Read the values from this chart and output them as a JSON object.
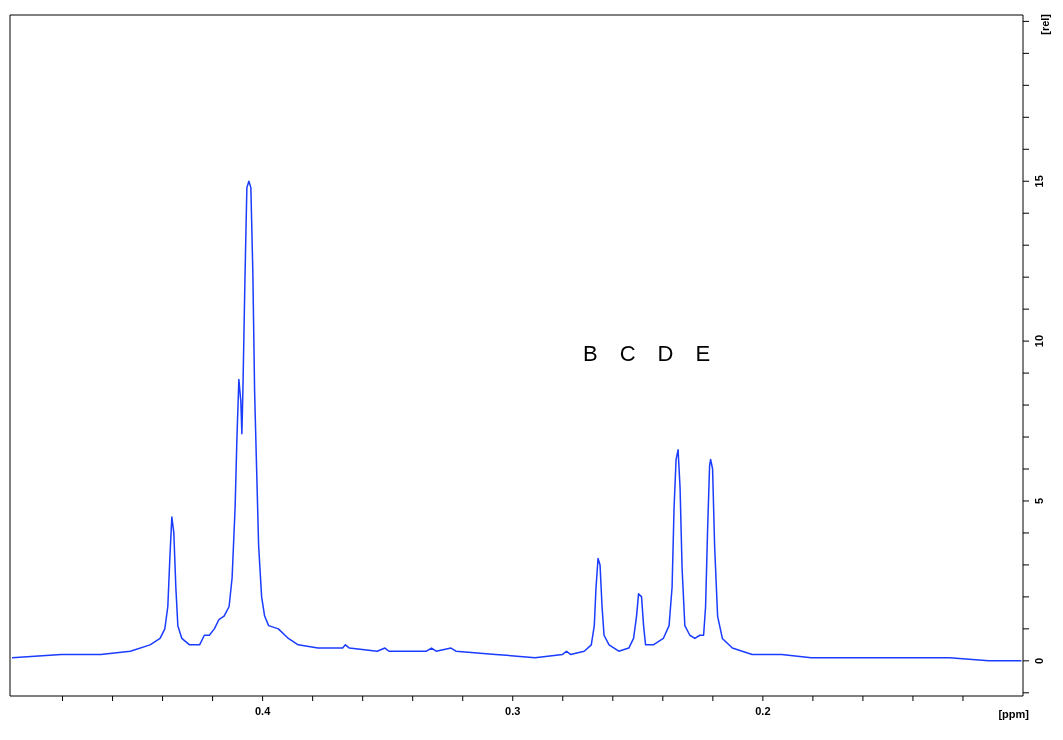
{
  "chart_data": {
    "type": "line",
    "xlabel": "[ppm]",
    "ylabel": "[rel]",
    "xlim": [
      0.501,
      0.096
    ],
    "ylim": [
      -1.1,
      20.2
    ],
    "xticks": [
      {
        "value": 0.48,
        "label": null
      },
      {
        "value": 0.46,
        "label": null
      },
      {
        "value": 0.44,
        "label": null
      },
      {
        "value": 0.42,
        "label": null
      },
      {
        "value": 0.4,
        "label": "0.4"
      },
      {
        "value": 0.38,
        "label": null
      },
      {
        "value": 0.36,
        "label": null
      },
      {
        "value": 0.34,
        "label": null
      },
      {
        "value": 0.32,
        "label": null
      },
      {
        "value": 0.3,
        "label": "0.3"
      },
      {
        "value": 0.28,
        "label": null
      },
      {
        "value": 0.26,
        "label": null
      },
      {
        "value": 0.24,
        "label": null
      },
      {
        "value": 0.22,
        "label": null
      },
      {
        "value": 0.2,
        "label": "0.2"
      },
      {
        "value": 0.18,
        "label": null
      },
      {
        "value": 0.16,
        "label": null
      },
      {
        "value": 0.14,
        "label": null
      },
      {
        "value": 0.12,
        "label": null
      }
    ],
    "yticks": [
      {
        "value": -1,
        "label": null
      },
      0,
      {
        "value": 1,
        "label": null
      },
      {
        "value": 2,
        "label": null
      },
      {
        "value": 3,
        "label": null
      },
      {
        "value": 4,
        "label": null
      },
      5,
      {
        "value": 6,
        "label": null
      },
      {
        "value": 7,
        "label": null
      },
      {
        "value": 8,
        "label": null
      },
      {
        "value": 9,
        "label": null
      },
      10,
      {
        "value": 11,
        "label": null
      },
      {
        "value": 12,
        "label": null
      },
      {
        "value": 13,
        "label": null
      },
      {
        "value": 14,
        "label": null
      },
      15,
      {
        "value": 16,
        "label": null
      },
      {
        "value": 17,
        "label": null
      },
      {
        "value": 18,
        "label": null
      },
      {
        "value": 19,
        "label": null
      },
      {
        "value": 20,
        "label": null
      }
    ],
    "grid": false,
    "annotations": [
      "B",
      "C",
      "D",
      "E"
    ],
    "series": [
      {
        "color": "#1a3cff",
        "x": [
          0.5002,
          0.4805,
          0.4726,
          0.4647,
          0.4529,
          0.445,
          0.441,
          0.4391,
          0.4379,
          0.4371,
          0.4363,
          0.4355,
          0.4347,
          0.4339,
          0.4323,
          0.4292,
          0.4252,
          0.4233,
          0.4213,
          0.4193,
          0.4174,
          0.4154,
          0.4134,
          0.4122,
          0.411,
          0.4103,
          0.4095,
          0.4087,
          0.4083,
          0.4079,
          0.4071,
          0.4063,
          0.4055,
          0.4047,
          0.4039,
          0.4032,
          0.4024,
          0.4016,
          0.4004,
          0.3992,
          0.3976,
          0.3937,
          0.3897,
          0.3858,
          0.3779,
          0.368,
          0.3669,
          0.3653,
          0.3542,
          0.3511,
          0.3495,
          0.3345,
          0.3325,
          0.3306,
          0.3247,
          0.3227,
          0.3069,
          0.2911,
          0.2801,
          0.2785,
          0.2769,
          0.2714,
          0.2686,
          0.2674,
          0.2667,
          0.2659,
          0.2651,
          0.2643,
          0.2635,
          0.2615,
          0.2576,
          0.2536,
          0.2517,
          0.2505,
          0.2497,
          0.2485,
          0.2477,
          0.2469,
          0.2438,
          0.2398,
          0.2375,
          0.2363,
          0.2355,
          0.2347,
          0.2339,
          0.2331,
          0.2323,
          0.2312,
          0.2292,
          0.2272,
          0.2252,
          0.2237,
          0.2229,
          0.2221,
          0.2213,
          0.2209,
          0.2201,
          0.2193,
          0.2181,
          0.2162,
          0.2122,
          0.2043,
          0.1925,
          0.1807,
          0.1688,
          0.1491,
          0.1254,
          0.1097,
          0.0966
        ],
        "values": [
          0.1,
          0.2,
          0.2,
          0.2,
          0.3,
          0.5,
          0.7,
          1.0,
          1.7,
          3.2,
          4.5,
          4.0,
          2.3,
          1.1,
          0.7,
          0.5,
          0.5,
          0.8,
          0.8,
          1.0,
          1.3,
          1.4,
          1.7,
          2.6,
          4.8,
          6.9,
          8.8,
          8.1,
          7.1,
          8.4,
          11.8,
          14.8,
          15.0,
          14.8,
          12.1,
          8.4,
          6.0,
          3.6,
          2.0,
          1.4,
          1.1,
          1.0,
          0.7,
          0.5,
          0.4,
          0.4,
          0.5,
          0.4,
          0.3,
          0.4,
          0.3,
          0.3,
          0.4,
          0.3,
          0.4,
          0.3,
          0.2,
          0.1,
          0.2,
          0.3,
          0.2,
          0.3,
          0.5,
          1.1,
          2.3,
          3.2,
          3.0,
          1.7,
          0.8,
          0.5,
          0.3,
          0.4,
          0.7,
          1.4,
          2.1,
          2.0,
          1.1,
          0.5,
          0.5,
          0.7,
          1.1,
          2.3,
          4.8,
          6.3,
          6.6,
          5.4,
          2.9,
          1.1,
          0.8,
          0.7,
          0.8,
          0.8,
          1.7,
          4.1,
          6.1,
          6.3,
          6.0,
          3.6,
          1.4,
          0.7,
          0.4,
          0.2,
          0.2,
          0.1,
          0.1,
          0.1,
          0.1,
          0.0,
          0.0
        ]
      }
    ]
  }
}
